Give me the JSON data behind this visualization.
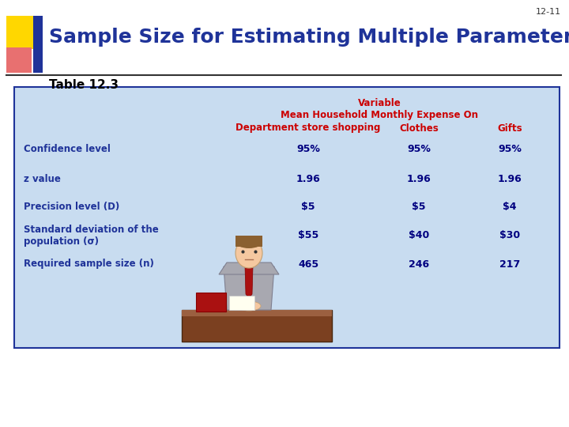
{
  "slide_number": "12-11",
  "title": "Sample Size for Estimating Multiple Parameters",
  "subtitle": "Table 12.3",
  "title_color": "#1F3399",
  "subtitle_color": "#000000",
  "bg_color": "#FFFFFF",
  "table_bg": "#C8DCF0",
  "table_border": "#1F3399",
  "header_color": "#CC0000",
  "row_label_color": "#1F3399",
  "row_value_color": "#000080",
  "header_line1": "Variable",
  "header_line2": "Mean Household Monthly Expense On",
  "col_headers": [
    "Department store shopping",
    "Clothes",
    "Gifts"
  ],
  "row_labels": [
    "Confidence level",
    "z value",
    "Precision level (D)",
    "Standard deviation of the\npopulation (σ)",
    "Required sample size (n)"
  ],
  "col1_values": [
    "95%",
    "1.96",
    "$5",
    "$55",
    "465"
  ],
  "col2_values": [
    "95%",
    "1.96",
    "$5",
    "$40",
    "246"
  ],
  "col3_values": [
    "95%",
    "1.96",
    "$4",
    "$30",
    "217"
  ],
  "logo_yellow": "#FFD700",
  "logo_pink": "#E87070",
  "logo_blue": "#1F3399",
  "desk_color": "#7B4020",
  "suit_color": "#A8A8B0",
  "skin_color": "#F5C8A0",
  "hair_color": "#8B6030",
  "tie_color": "#AA1111"
}
